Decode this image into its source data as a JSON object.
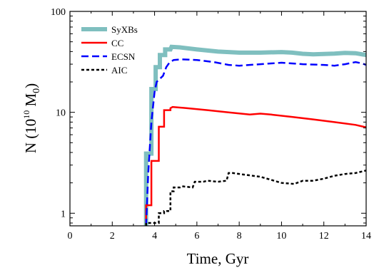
{
  "chart_data": {
    "type": "line",
    "title": "",
    "xlabel": "Time, Gyr",
    "ylabel": {
      "base": "N (10",
      "exp": "10",
      "unit": " M",
      "sub": "0",
      "close": ")"
    },
    "xlim": [
      0,
      14
    ],
    "ylim": [
      0.75,
      100
    ],
    "yscale": "log",
    "x_ticks": [
      0,
      2,
      4,
      6,
      8,
      10,
      12,
      14
    ],
    "x_tick_labels": [
      "0",
      "2",
      "4",
      "6",
      "8",
      "10",
      "12",
      "14"
    ],
    "y_ticks": [
      1,
      10,
      100
    ],
    "y_tick_labels": [
      "1",
      "10",
      "100"
    ],
    "grid": false,
    "legend_position": "top-left",
    "series": [
      {
        "name": "SyXBs",
        "color": "#7fbfbf",
        "style": "solid-thick",
        "x": [
          3.6,
          3.6,
          3.85,
          3.85,
          4.05,
          4.05,
          4.25,
          4.25,
          4.5,
          4.5,
          4.75,
          4.8,
          5.2,
          6.0,
          7.0,
          8.0,
          9.0,
          10.0,
          10.5,
          11.0,
          11.5,
          12.0,
          12.5,
          13.0,
          13.5,
          14.0
        ],
        "y": [
          0.75,
          3.9,
          3.9,
          17.0,
          17.0,
          28.0,
          28.0,
          37.0,
          37.0,
          42.0,
          42.0,
          44.5,
          44.0,
          42.0,
          40.0,
          39.0,
          39.0,
          39.5,
          39.0,
          38.0,
          37.5,
          37.8,
          38.2,
          38.8,
          38.5,
          37.0
        ]
      },
      {
        "name": "CC",
        "color": "#ff0000",
        "style": "solid",
        "x": [
          3.6,
          3.6,
          3.85,
          3.85,
          4.2,
          4.2,
          4.45,
          4.45,
          4.75,
          4.75,
          4.85,
          5.5,
          6.5,
          7.5,
          8.5,
          9.0,
          9.5,
          10.5,
          11.5,
          12.5,
          13.5,
          14.0
        ],
        "y": [
          0.75,
          1.2,
          1.2,
          3.3,
          3.3,
          7.2,
          7.2,
          10.5,
          10.5,
          11.0,
          11.3,
          11.0,
          10.5,
          10.0,
          9.5,
          9.7,
          9.5,
          9.0,
          8.5,
          8.0,
          7.5,
          7.1
        ]
      },
      {
        "name": "ECSN",
        "color": "#0000ff",
        "style": "dashed",
        "x": [
          3.6,
          3.7,
          3.85,
          4.0,
          4.1,
          4.25,
          4.4,
          4.55,
          4.7,
          4.9,
          5.3,
          6.0,
          6.8,
          7.5,
          8.0,
          9.0,
          10.0,
          11.0,
          12.0,
          12.5,
          13.0,
          13.5,
          13.8,
          14.0
        ],
        "y": [
          0.75,
          2.5,
          8.0,
          16.0,
          20.0,
          21.5,
          23.0,
          28.0,
          31.0,
          33.0,
          33.5,
          33.0,
          31.5,
          29.5,
          29.0,
          30.0,
          31.0,
          30.0,
          29.5,
          29.0,
          30.0,
          31.5,
          30.5,
          29.5
        ]
      },
      {
        "name": "AIC",
        "color": "#000000",
        "style": "dotted",
        "x": [
          3.6,
          3.6,
          4.2,
          4.2,
          4.45,
          4.45,
          4.75,
          4.75,
          4.9,
          4.9,
          5.2,
          5.3,
          5.8,
          5.9,
          6.3,
          6.5,
          7.0,
          7.4,
          7.5,
          7.7,
          8.3,
          9.0,
          10.0,
          10.6,
          11.0,
          11.5,
          12.0,
          12.5,
          13.0,
          13.5,
          14.0
        ],
        "y": [
          0.75,
          0.8,
          0.8,
          1.0,
          1.0,
          1.05,
          1.05,
          1.65,
          1.65,
          1.8,
          1.8,
          1.85,
          1.8,
          2.05,
          2.05,
          2.1,
          2.05,
          2.1,
          2.5,
          2.5,
          2.4,
          2.3,
          2.0,
          1.95,
          2.1,
          2.1,
          2.2,
          2.35,
          2.45,
          2.5,
          2.65
        ]
      }
    ]
  }
}
